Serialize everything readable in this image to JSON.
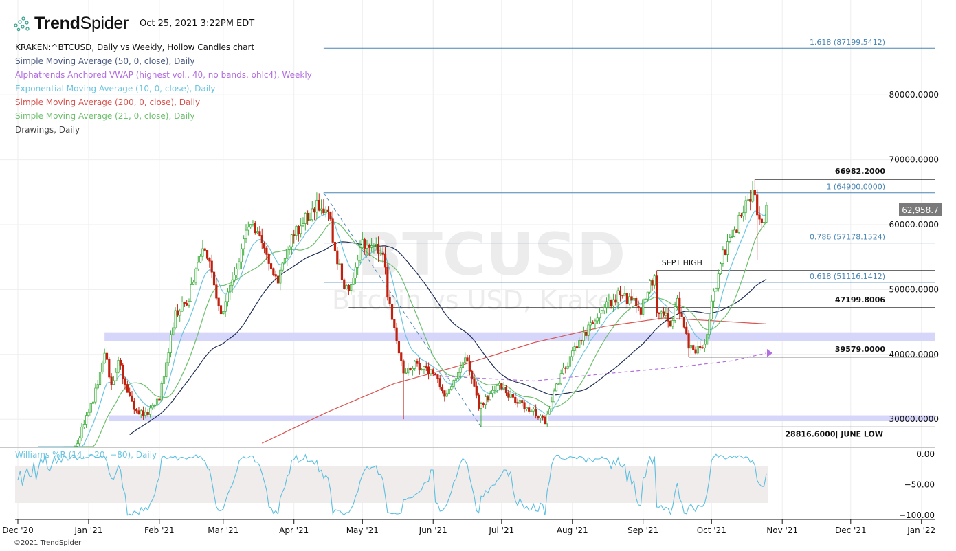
{
  "header": {
    "brand_bold": "Trend",
    "brand_light": "Spider",
    "timestamp": "Oct 25, 2021 3:22PM EDT"
  },
  "legend": {
    "symbol": "KRAKEN:^BTCUSD, Daily vs Weekly, Hollow Candles chart",
    "items": [
      {
        "label": "Simple Moving Average (50, 0, close), Daily",
        "color": "#4a5a80"
      },
      {
        "label": "Alphatrends Anchored VWAP (highest vol., 40, no bands, ohlc4), Weekly",
        "color": "#b36ee0"
      },
      {
        "label": "Exponential Moving Average (10, 0, close), Daily",
        "color": "#6cc5e0"
      },
      {
        "label": "Simple Moving Average (200, 0, close), Daily",
        "color": "#d9534f"
      },
      {
        "label": "Simple Moving Average (21, 0, close), Daily",
        "color": "#6cbf6c"
      },
      {
        "label": "Drawings, Daily",
        "color": "#444444"
      }
    ]
  },
  "watermark": {
    "symbol": "BTCUSD",
    "name": "Bitcoin vs USD, Kraken"
  },
  "copyright": "©2021 TrendSpider",
  "chart_data": {
    "type": "candlestick",
    "title": "KRAKEN:^BTCUSD, Daily vs Weekly, Hollow Candles chart",
    "start_date": "2020-12-01",
    "close_keypoints": [
      [
        "2020-12-01",
        19000
      ],
      [
        "2020-12-16",
        21000
      ],
      [
        "2020-12-27",
        26500
      ],
      [
        "2021-01-03",
        33000
      ],
      [
        "2021-01-08",
        40500
      ],
      [
        "2021-01-11",
        35000
      ],
      [
        "2021-01-14",
        39000
      ],
      [
        "2021-01-21",
        31500
      ],
      [
        "2021-01-27",
        30800
      ],
      [
        "2021-02-01",
        33500
      ],
      [
        "2021-02-08",
        46000
      ],
      [
        "2021-02-14",
        48700
      ],
      [
        "2021-02-21",
        57000
      ],
      [
        "2021-02-28",
        45500
      ],
      [
        "2021-03-13",
        60500
      ],
      [
        "2021-03-25",
        51500
      ],
      [
        "2021-04-01",
        58800
      ],
      [
        "2021-04-13",
        63500
      ],
      [
        "2021-04-17",
        60000
      ],
      [
        "2021-04-22",
        51500
      ],
      [
        "2021-04-25",
        49000
      ],
      [
        "2021-05-01",
        57500
      ],
      [
        "2021-05-10",
        56000
      ],
      [
        "2021-05-12",
        49500
      ],
      [
        "2021-05-19",
        37500
      ],
      [
        "2021-05-24",
        38500
      ],
      [
        "2021-05-31",
        37300
      ],
      [
        "2021-06-07",
        33500
      ],
      [
        "2021-06-15",
        40000
      ],
      [
        "2021-06-21",
        32000
      ],
      [
        "2021-06-30",
        35000
      ],
      [
        "2021-07-08",
        32800
      ],
      [
        "2021-07-20",
        29800
      ],
      [
        "2021-07-25",
        35400
      ],
      [
        "2021-08-01",
        40000
      ],
      [
        "2021-08-14",
        47000
      ],
      [
        "2021-08-22",
        49300
      ],
      [
        "2021-08-31",
        47000
      ],
      [
        "2021-09-06",
        52200
      ],
      [
        "2021-09-07",
        46800
      ],
      [
        "2021-09-13",
        44900
      ],
      [
        "2021-09-16",
        48000
      ],
      [
        "2021-09-20",
        43000
      ],
      [
        "2021-09-21",
        40700
      ],
      [
        "2021-09-28",
        41000
      ],
      [
        "2021-10-01",
        48000
      ],
      [
        "2021-10-06",
        55400
      ],
      [
        "2021-10-15",
        62000
      ],
      [
        "2021-10-20",
        65500
      ],
      [
        "2021-10-21",
        62200
      ],
      [
        "2021-10-24",
        61000
      ],
      [
        "2021-10-25",
        62958.7
      ]
    ],
    "sma200_keypoints": [
      [
        "2021-03-18",
        26300
      ],
      [
        "2021-04-15",
        31000
      ],
      [
        "2021-05-15",
        35500
      ],
      [
        "2021-06-15",
        38500
      ],
      [
        "2021-07-15",
        41800
      ],
      [
        "2021-08-15",
        44300
      ],
      [
        "2021-09-10",
        45600
      ],
      [
        "2021-10-01",
        45200
      ],
      [
        "2021-10-25",
        44700
      ]
    ],
    "vwap_keypoints": [
      [
        "2021-06-01",
        36700
      ],
      [
        "2021-07-15",
        35900
      ],
      [
        "2021-08-15",
        37000
      ],
      [
        "2021-09-15",
        38000
      ],
      [
        "2021-10-10",
        39000
      ],
      [
        "2021-10-25",
        40200
      ]
    ],
    "last_price": "62,958.7",
    "y_ticks": [
      "80000.0000",
      "70000.0000",
      "60000.0000",
      "50000.0000",
      "40000.0000",
      "30000.0000"
    ],
    "y_tick_values": [
      80000,
      70000,
      60000,
      50000,
      40000,
      30000
    ],
    "x_ticks": [
      "Dec '20",
      "Jan '21",
      "Feb '21",
      "Mar '21",
      "Apr '21",
      "May '21",
      "Jun '21",
      "Jul '21",
      "Aug '21",
      "Sep '21",
      "Oct '21",
      "Nov '21",
      "Dec '21",
      "Jan '22"
    ],
    "x_tick_dates": [
      "2020-12-01",
      "2021-01-01",
      "2021-02-01",
      "2021-03-01",
      "2021-04-01",
      "2021-05-01",
      "2021-06-01",
      "2021-07-01",
      "2021-08-01",
      "2021-09-01",
      "2021-10-01",
      "2021-11-01",
      "2021-12-01",
      "2022-01-01"
    ],
    "fib_levels": [
      {
        "label": "1.618 (87199.5412)",
        "value": 87199.5412,
        "from": "2021-04-14"
      },
      {
        "label": "1 (64900.0000)",
        "value": 64900,
        "from": "2021-04-14"
      },
      {
        "label": "0.786 (57178.1524)",
        "value": 57178.1524,
        "from": "2021-04-14"
      },
      {
        "label": "0.618 (51116.1412)",
        "value": 51116.1412,
        "from": "2021-04-14"
      }
    ],
    "levels": [
      {
        "label": "66982.2000",
        "value": 66982.2,
        "from": "2021-10-20"
      },
      {
        "label": "47199.8006",
        "value": 47199.8006,
        "from": "2021-04-25"
      },
      {
        "label": "39579.0000",
        "value": 39579,
        "from": "2021-09-21"
      },
      {
        "label": "28816.6000| JUNE LOW",
        "value": 28816.6,
        "from": "2021-06-22"
      },
      {
        "label": "| SEPT HIGH",
        "value": 52920,
        "from": "2021-09-07"
      }
    ],
    "zones": [
      {
        "low": 42000,
        "high": 43400,
        "from": "2021-01-08"
      },
      {
        "low": 29700,
        "high": 30600,
        "from": "2021-01-10"
      }
    ],
    "trendline": {
      "from": [
        "2021-04-14",
        64900
      ],
      "to": [
        "2021-06-22",
        28816.6
      ]
    },
    "williams_r": {
      "label": "Williams %R (14, −20, −80), Daily",
      "period": 14,
      "upper": -20,
      "lower": -80,
      "y_ticks": [
        "0.00",
        "−50.00",
        "−100.00"
      ],
      "y_tick_values": [
        0,
        -50,
        -100
      ]
    }
  }
}
